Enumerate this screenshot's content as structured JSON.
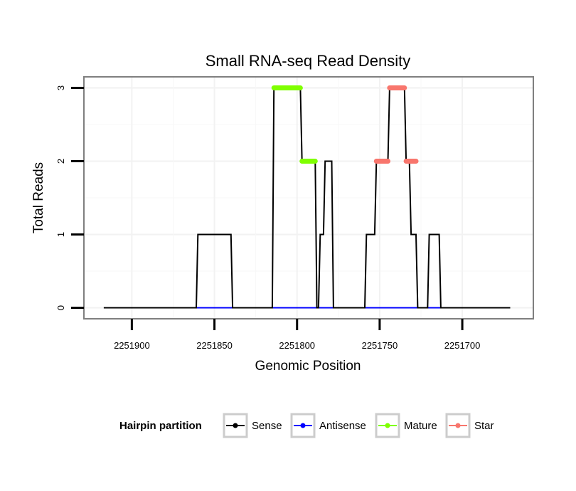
{
  "chart_data": {
    "type": "line",
    "title": "Small RNA-seq Read Density",
    "xlabel": "Genomic Position",
    "ylabel": "Total Reads",
    "x_reversed": true,
    "xlim": [
      2251929,
      2251657
    ],
    "ylim": [
      -0.15,
      3.15
    ],
    "x_ticks": [
      2251900,
      2251850,
      2251800,
      2251750,
      2251700
    ],
    "x_tick_labels": [
      "2251900",
      "2251850",
      "2251800",
      "2251750",
      "2251700"
    ],
    "y_ticks": [
      0,
      1,
      2,
      3
    ],
    "y_tick_labels": [
      "0",
      "1",
      "2",
      "3"
    ],
    "grid": true,
    "series": [
      {
        "name": "Sense",
        "color": "#000000",
        "x": [
          2251917,
          2251861,
          2251860,
          2251840,
          2251839,
          2251815,
          2251814,
          2251798,
          2251797,
          2251789,
          2251788,
          2251787,
          2251786,
          2251784,
          2251783,
          2251779,
          2251778,
          2251759,
          2251758,
          2251753,
          2251752,
          2251745,
          2251744,
          2251735,
          2251734,
          2251732,
          2251731,
          2251728,
          2251727,
          2251721,
          2251720,
          2251714,
          2251713,
          2251708,
          2251707,
          2251690,
          2251689,
          2251671
        ],
        "values": [
          0,
          0,
          1,
          1,
          0,
          0,
          3,
          3,
          2,
          2,
          0,
          0,
          1,
          1,
          2,
          2,
          0,
          0,
          1,
          1,
          2,
          2,
          3,
          3,
          2,
          2,
          1,
          1,
          0,
          0,
          1,
          1,
          0,
          0,
          0,
          0,
          0,
          0
        ]
      },
      {
        "name": "Antisense",
        "color": "#0000ff",
        "x": [
          2251861,
          2251689
        ],
        "values": [
          0,
          0
        ]
      },
      {
        "name": "Mature",
        "color": "#7fff00",
        "x": [
          2251814,
          2251798,
          2251797,
          2251789
        ],
        "values": [
          3,
          3,
          2,
          2
        ]
      },
      {
        "name": "Star",
        "color": "#f8766d",
        "x": [
          2251752,
          2251745,
          2251744,
          2251735,
          2251734,
          2251728
        ],
        "values": [
          2,
          2,
          3,
          3,
          2,
          2
        ]
      }
    ],
    "legend": {
      "title": "Hairpin partition",
      "position": "bottom",
      "entries": [
        "Sense",
        "Antisense",
        "Mature",
        "Star"
      ]
    }
  }
}
